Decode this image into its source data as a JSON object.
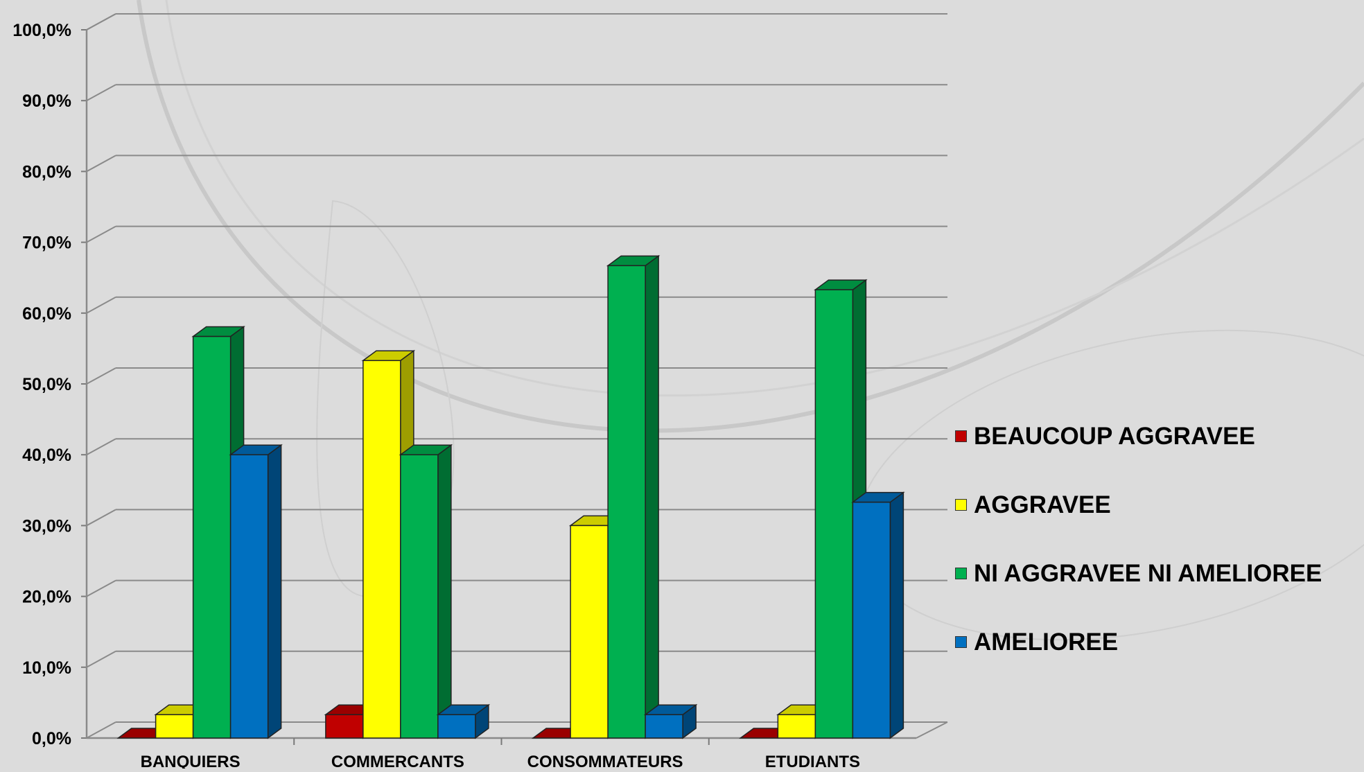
{
  "chart_data": {
    "type": "bar",
    "categories": [
      "BANQUIERS",
      "COMMERCANTS",
      "CONSOMMATEURS",
      "ETUDIANTS"
    ],
    "series": [
      {
        "name": "BEAUCOUP AGGRAVEE",
        "color": "#c00000",
        "values": [
          0,
          3.3,
          0,
          0
        ]
      },
      {
        "name": "AGGRAVEE",
        "color": "#ffff00",
        "values": [
          3.3,
          53.3,
          30.0,
          3.3
        ]
      },
      {
        "name": "NI AGGRAVEE NI AMELIOREE",
        "color": "#00b050",
        "values": [
          56.7,
          40.0,
          66.7,
          63.3
        ]
      },
      {
        "name": "AMELIOREE",
        "color": "#0070c0",
        "values": [
          40.0,
          3.3,
          3.3,
          33.3
        ]
      }
    ],
    "ytick_labels": [
      "0,0%",
      "10,0%",
      "20,0%",
      "30,0%",
      "40,0%",
      "50,0%",
      "60,0%",
      "70,0%",
      "80,0%",
      "90,0%",
      "100,0%"
    ],
    "ylim": [
      0,
      100
    ],
    "grid": true,
    "legend_position": "right",
    "three_d": true
  }
}
